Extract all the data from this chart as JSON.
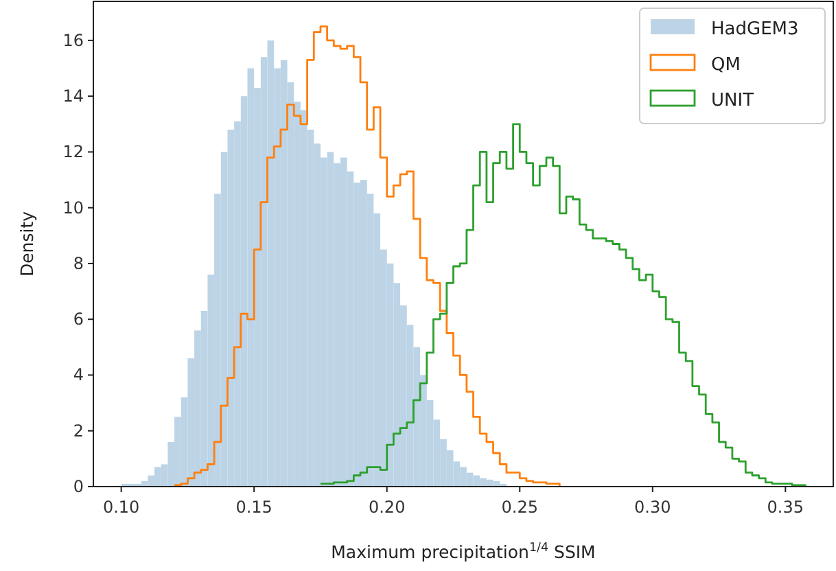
{
  "chart_data": {
    "type": "histogram",
    "xlabel": "Maximum precipitation$^{1/4}$ SSIM",
    "ylabel": "Density",
    "xlim": [
      0.0895,
      0.368
    ],
    "ylim": [
      0,
      17.4
    ],
    "xticks": [
      {
        "value": 0.1,
        "label": "0.10"
      },
      {
        "value": 0.15,
        "label": "0.15"
      },
      {
        "value": 0.2,
        "label": "0.20"
      },
      {
        "value": 0.25,
        "label": "0.25"
      },
      {
        "value": 0.3,
        "label": "0.30"
      },
      {
        "value": 0.35,
        "label": "0.35"
      }
    ],
    "yticks": [
      0,
      2,
      4,
      6,
      8,
      10,
      12,
      14,
      16
    ],
    "grid": false,
    "legend": "top right",
    "bins": [
      0.1,
      0.1025,
      0.105,
      0.1075,
      0.11,
      0.1125,
      0.115,
      0.1175,
      0.12,
      0.1225,
      0.125,
      0.1275,
      0.13,
      0.1325,
      0.135,
      0.1375,
      0.14,
      0.1425,
      0.145,
      0.1475,
      0.15,
      0.1525,
      0.155,
      0.1575,
      0.16,
      0.1625,
      0.165,
      0.1675,
      0.17,
      0.1725,
      0.175,
      0.1775,
      0.18,
      0.1825,
      0.185,
      0.1875,
      0.19,
      0.1925,
      0.195,
      0.1975,
      0.2,
      0.2025,
      0.205,
      0.2075,
      0.21,
      0.2125,
      0.215,
      0.2175,
      0.22,
      0.2225,
      0.225,
      0.2275,
      0.23,
      0.2325,
      0.235,
      0.2375,
      0.24,
      0.2425,
      0.245
    ],
    "series": [
      {
        "name": "HadGEM3",
        "type": "histogram",
        "color": "#bcd4e6",
        "values": [
          0.1,
          0.1,
          0.1,
          0.2,
          0.4,
          0.7,
          0.8,
          1.6,
          2.5,
          3.2,
          4.6,
          5.6,
          6.3,
          7.6,
          10.5,
          12.0,
          12.8,
          13.1,
          14.0,
          15.0,
          14.3,
          15.4,
          16.0,
          15.0,
          15.3,
          14.5,
          13.8,
          13.5,
          12.8,
          12.3,
          11.8,
          12.0,
          11.6,
          11.8,
          11.3,
          10.9,
          11.0,
          10.5,
          9.8,
          8.5,
          8.0,
          7.3,
          6.5,
          5.8,
          5.0,
          4.0,
          3.1,
          2.4,
          1.7,
          1.3,
          0.9,
          0.7,
          0.5,
          0.4,
          0.3,
          0.25,
          0.2,
          0.1
        ]
      },
      {
        "name": "QM",
        "type": "step",
        "color": "#ff7f0e",
        "x": [
          0.12,
          0.1225,
          0.125,
          0.1275,
          0.13,
          0.1325,
          0.135,
          0.1375,
          0.14,
          0.1425,
          0.145,
          0.1475,
          0.15,
          0.1525,
          0.155,
          0.1575,
          0.16,
          0.1625,
          0.165,
          0.1675,
          0.17,
          0.1725,
          0.175,
          0.1775,
          0.18,
          0.1825,
          0.185,
          0.1875,
          0.19,
          0.1925,
          0.195,
          0.1975,
          0.2,
          0.2025,
          0.205,
          0.2075,
          0.21,
          0.2125,
          0.215,
          0.2175,
          0.22,
          0.2225,
          0.225,
          0.2275,
          0.23,
          0.2325,
          0.235,
          0.2375,
          0.24,
          0.2425,
          0.245,
          0.2475,
          0.25,
          0.2525,
          0.255,
          0.2575,
          0.26,
          0.2625,
          0.265
        ],
        "values": [
          0.05,
          0.1,
          0.3,
          0.5,
          0.6,
          0.8,
          1.6,
          2.9,
          3.9,
          5.0,
          6.2,
          6.0,
          8.5,
          10.2,
          11.8,
          12.2,
          12.8,
          13.7,
          13.3,
          13.0,
          15.3,
          16.3,
          16.5,
          16.0,
          15.8,
          15.7,
          15.8,
          15.4,
          14.5,
          12.8,
          13.6,
          11.8,
          10.4,
          10.8,
          11.2,
          11.3,
          9.6,
          8.2,
          7.4,
          7.3,
          6.3,
          5.5,
          4.7,
          4.0,
          3.4,
          2.5,
          1.9,
          1.6,
          1.2,
          0.8,
          0.5,
          0.5,
          0.3,
          0.2,
          0.15,
          0.15,
          0.1,
          0.1,
          0
        ]
      },
      {
        "name": "UNIT",
        "type": "step",
        "color": "#2ca02c",
        "x": [
          0.175,
          0.1775,
          0.18,
          0.1825,
          0.185,
          0.1875,
          0.19,
          0.1925,
          0.195,
          0.1975,
          0.2,
          0.2025,
          0.205,
          0.2075,
          0.21,
          0.2125,
          0.215,
          0.2175,
          0.22,
          0.2225,
          0.225,
          0.2275,
          0.23,
          0.2325,
          0.235,
          0.2375,
          0.24,
          0.2425,
          0.245,
          0.2475,
          0.25,
          0.2525,
          0.255,
          0.2575,
          0.26,
          0.2625,
          0.265,
          0.2675,
          0.27,
          0.2725,
          0.275,
          0.2775,
          0.28,
          0.2825,
          0.285,
          0.2875,
          0.29,
          0.2925,
          0.295,
          0.2975,
          0.3,
          0.3025,
          0.305,
          0.3075,
          0.31,
          0.3125,
          0.315,
          0.3175,
          0.32,
          0.3225,
          0.325,
          0.3275,
          0.33,
          0.3325,
          0.335,
          0.3375,
          0.34,
          0.3425,
          0.345,
          0.3475,
          0.35,
          0.3525,
          0.355,
          0.3575
        ],
        "values": [
          0.1,
          0.1,
          0.15,
          0.15,
          0.2,
          0.4,
          0.5,
          0.7,
          0.7,
          0.6,
          1.5,
          1.9,
          2.1,
          2.3,
          3.1,
          3.7,
          4.8,
          6.0,
          6.2,
          7.3,
          7.9,
          8.0,
          9.2,
          10.8,
          12.0,
          10.2,
          11.6,
          12.0,
          11.4,
          13.0,
          12.0,
          11.6,
          10.8,
          11.5,
          11.8,
          11.5,
          9.8,
          10.4,
          10.3,
          9.4,
          9.2,
          8.9,
          8.9,
          8.8,
          8.7,
          8.5,
          8.2,
          7.8,
          7.4,
          7.6,
          7.0,
          6.8,
          6.0,
          5.9,
          4.8,
          4.5,
          3.6,
          3.3,
          2.6,
          2.3,
          1.6,
          1.4,
          1.0,
          0.9,
          0.5,
          0.4,
          0.3,
          0.15,
          0.1,
          0.1,
          0.1,
          0.05,
          0.05,
          0
        ]
      }
    ]
  }
}
